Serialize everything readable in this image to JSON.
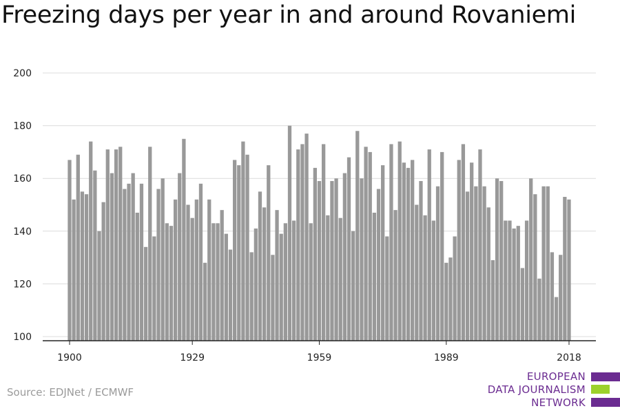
{
  "title": "Freezing days per year in and around Rovaniemi",
  "source": "Source: EDJNet / ECMWF",
  "logo": {
    "line1": "EUROPEAN",
    "line2": "DATA JOURNALISM",
    "line3": "NETWORK",
    "colors": {
      "text": "#6b2c91",
      "purple": "#6b2c91",
      "green": "#9cd12b"
    }
  },
  "chart_data": {
    "type": "bar",
    "title": "Freezing days per year in and around Rovaniemi",
    "xlabel": "",
    "ylabel": "",
    "bar_color": "#999999",
    "grid": true,
    "ylim": [
      100,
      200
    ],
    "y_ticks": [
      "100",
      "120",
      "140",
      "160",
      "180",
      "200"
    ],
    "x_ticks": [
      "1900",
      "1929",
      "1959",
      "1989",
      "2018"
    ],
    "x": [
      1900,
      1901,
      1902,
      1903,
      1904,
      1905,
      1906,
      1907,
      1908,
      1909,
      1910,
      1911,
      1912,
      1913,
      1914,
      1915,
      1916,
      1917,
      1918,
      1919,
      1920,
      1921,
      1922,
      1923,
      1924,
      1925,
      1926,
      1927,
      1928,
      1929,
      1930,
      1931,
      1932,
      1933,
      1934,
      1935,
      1936,
      1937,
      1938,
      1939,
      1940,
      1941,
      1942,
      1943,
      1944,
      1945,
      1946,
      1947,
      1948,
      1949,
      1950,
      1951,
      1952,
      1953,
      1954,
      1955,
      1956,
      1957,
      1958,
      1959,
      1960,
      1961,
      1962,
      1963,
      1964,
      1965,
      1966,
      1967,
      1968,
      1969,
      1970,
      1971,
      1972,
      1973,
      1974,
      1975,
      1976,
      1977,
      1978,
      1979,
      1980,
      1981,
      1982,
      1983,
      1984,
      1985,
      1986,
      1987,
      1988,
      1989,
      1990,
      1991,
      1992,
      1993,
      1994,
      1995,
      1996,
      1997,
      1998,
      1999,
      2000,
      2001,
      2002,
      2003,
      2004,
      2005,
      2006,
      2007,
      2008,
      2009,
      2010,
      2011,
      2012,
      2013,
      2014,
      2015,
      2016,
      2017,
      2018
    ],
    "values": [
      167,
      152,
      169,
      155,
      154,
      174,
      163,
      140,
      151,
      171,
      162,
      171,
      172,
      156,
      158,
      162,
      147,
      158,
      134,
      172,
      138,
      156,
      160,
      143,
      142,
      152,
      162,
      175,
      150,
      145,
      152,
      158,
      128,
      152,
      143,
      143,
      148,
      139,
      133,
      167,
      165,
      174,
      169,
      132,
      141,
      155,
      149,
      165,
      131,
      148,
      139,
      143,
      180,
      144,
      171,
      173,
      177,
      143,
      164,
      159,
      173,
      146,
      159,
      160,
      145,
      162,
      168,
      140,
      178,
      160,
      172,
      170,
      147,
      156,
      165,
      138,
      173,
      148,
      174,
      166,
      164,
      167,
      150,
      159,
      146,
      171,
      144,
      157,
      170,
      128,
      130,
      138,
      167,
      173,
      155,
      166,
      157,
      171,
      157,
      149,
      129,
      160,
      159,
      144,
      144,
      141,
      142,
      126,
      144,
      160,
      154,
      122,
      157,
      157,
      132,
      115,
      131,
      153,
      152
    ]
  }
}
